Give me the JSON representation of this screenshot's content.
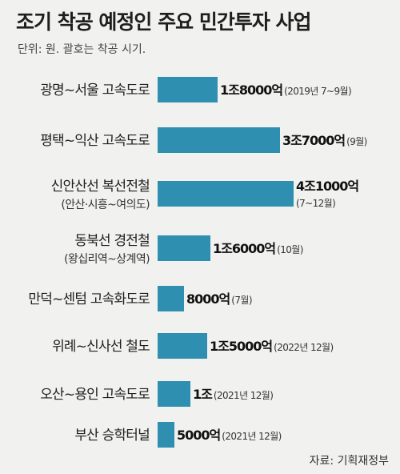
{
  "chart_data": {
    "type": "bar",
    "orientation": "horizontal",
    "title": "조기 착공 예정인 주요 민간투자 사업",
    "unit_note": "단위: 원. 괄호는 착공 시기.",
    "source": "자료: 기획재정부",
    "bar_color": "#2e8fb0",
    "categories": [
      {
        "name": "광명~서울 고속도로",
        "sub": "",
        "value_label": "1조8000억",
        "note": "(2019년 7~9월)"
      },
      {
        "name": "평택~익산 고속도로",
        "sub": "",
        "value_label": "3조7000억",
        "note": "(9월)"
      },
      {
        "name": "신안산선 복선전철",
        "sub": "(안산·시흥~여의도)",
        "value_label": "4조1000억",
        "note": "(7~12월)"
      },
      {
        "name": "동북선 경전철",
        "sub": "(왕십리역~상계역)",
        "value_label": "1조6000억",
        "note": "(10월)"
      },
      {
        "name": "만덕~센텀 고속화도로",
        "sub": "",
        "value_label": "8000억",
        "note": "(7월)"
      },
      {
        "name": "위례~신사선 철도",
        "sub": "",
        "value_label": "1조5000억",
        "note": "(2022년 12월)"
      },
      {
        "name": "오산~용인 고속도로",
        "sub": "",
        "value_label": "1조",
        "note": "(2021년 12월)"
      },
      {
        "name": "부산 승학터널",
        "sub": "",
        "value_label": "5000억",
        "note": "(2021년 12월)"
      }
    ],
    "values": [
      18000,
      37000,
      41000,
      16000,
      8000,
      15000,
      10000,
      5000
    ]
  }
}
